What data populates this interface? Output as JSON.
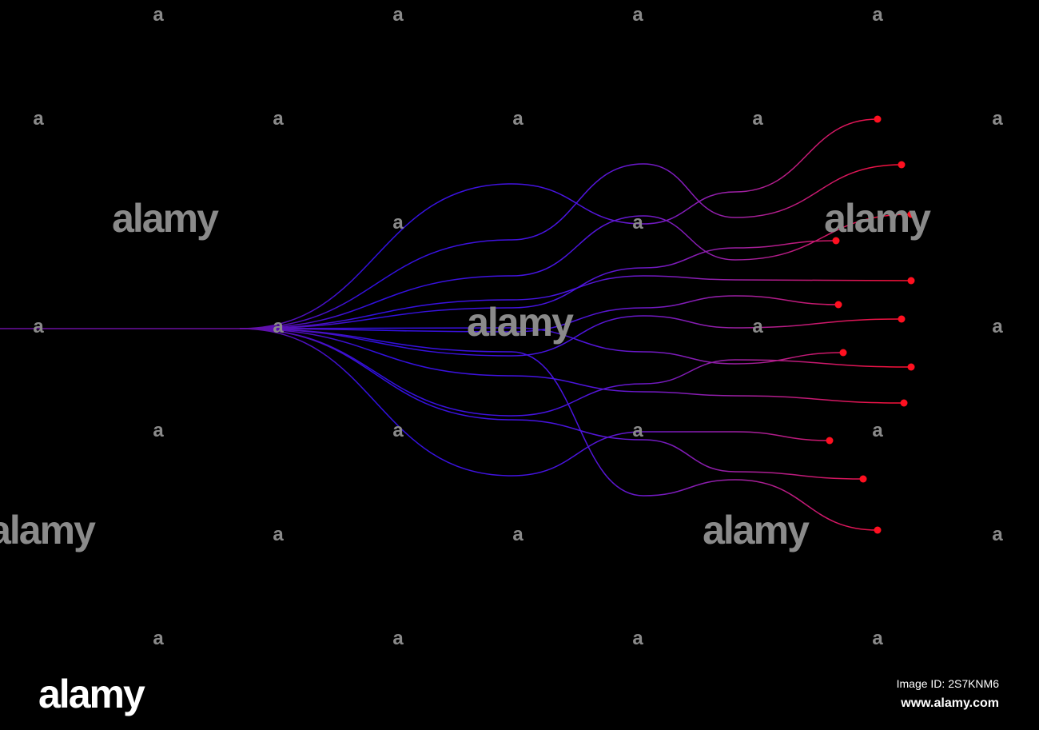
{
  "watermark": {
    "large": "alamy",
    "small": "a"
  },
  "footer": {
    "logo": "alamy",
    "image_id": "Image ID: 2S7KNM6",
    "url": "www.alamy.com"
  }
}
